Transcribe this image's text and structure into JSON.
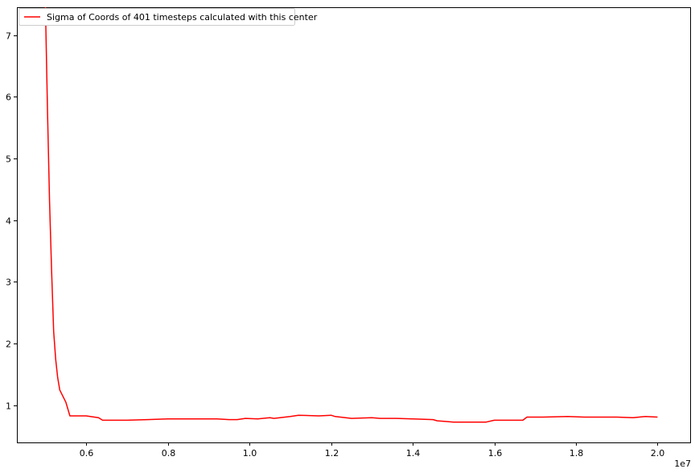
{
  "chart_data": {
    "type": "line",
    "title": "",
    "xlabel": "",
    "ylabel": "",
    "x_offset_label": "1e7",
    "xlim": [
      4.3,
      20.8
    ],
    "ylim": [
      0.4,
      7.45
    ],
    "x_ticks": [
      6,
      8,
      10,
      12,
      14,
      16,
      18,
      20
    ],
    "x_tick_labels": [
      "0.6",
      "0.8",
      "1.0",
      "1.2",
      "1.4",
      "1.6",
      "1.8",
      "2.0"
    ],
    "y_ticks": [
      1,
      2,
      3,
      4,
      5,
      6,
      7
    ],
    "y_tick_labels": [
      "1",
      "2",
      "3",
      "4",
      "5",
      "6",
      "7"
    ],
    "grid": false,
    "legend_position": "top-left",
    "series": [
      {
        "name": "Sigma of Coords of 401 timesteps calculated with this center",
        "color": "#ff0000",
        "x": [
          5.0,
          5.05,
          5.1,
          5.15,
          5.2,
          5.25,
          5.3,
          5.35,
          5.5,
          5.6,
          6.0,
          6.2,
          6.3,
          6.4,
          6.8,
          7.0,
          7.5,
          8.0,
          8.5,
          9.0,
          9.2,
          9.5,
          9.7,
          9.9,
          10.2,
          10.5,
          10.6,
          11.0,
          11.2,
          11.7,
          12.0,
          12.1,
          12.5,
          13.0,
          13.2,
          13.6,
          14.0,
          14.5,
          14.6,
          14.8,
          15.0,
          15.5,
          15.8,
          16.0,
          16.5,
          16.7,
          16.8,
          17.2,
          17.8,
          18.2,
          19.0,
          19.4,
          19.7,
          20.0
        ],
        "y": [
          7.45,
          5.8,
          4.3,
          3.2,
          2.2,
          1.75,
          1.45,
          1.25,
          1.05,
          0.83,
          0.83,
          0.81,
          0.8,
          0.76,
          0.76,
          0.76,
          0.77,
          0.78,
          0.78,
          0.78,
          0.78,
          0.77,
          0.77,
          0.79,
          0.78,
          0.8,
          0.79,
          0.82,
          0.84,
          0.83,
          0.84,
          0.82,
          0.79,
          0.8,
          0.79,
          0.79,
          0.78,
          0.77,
          0.75,
          0.74,
          0.73,
          0.73,
          0.73,
          0.76,
          0.76,
          0.76,
          0.81,
          0.81,
          0.82,
          0.81,
          0.81,
          0.8,
          0.82,
          0.81
        ]
      }
    ]
  }
}
